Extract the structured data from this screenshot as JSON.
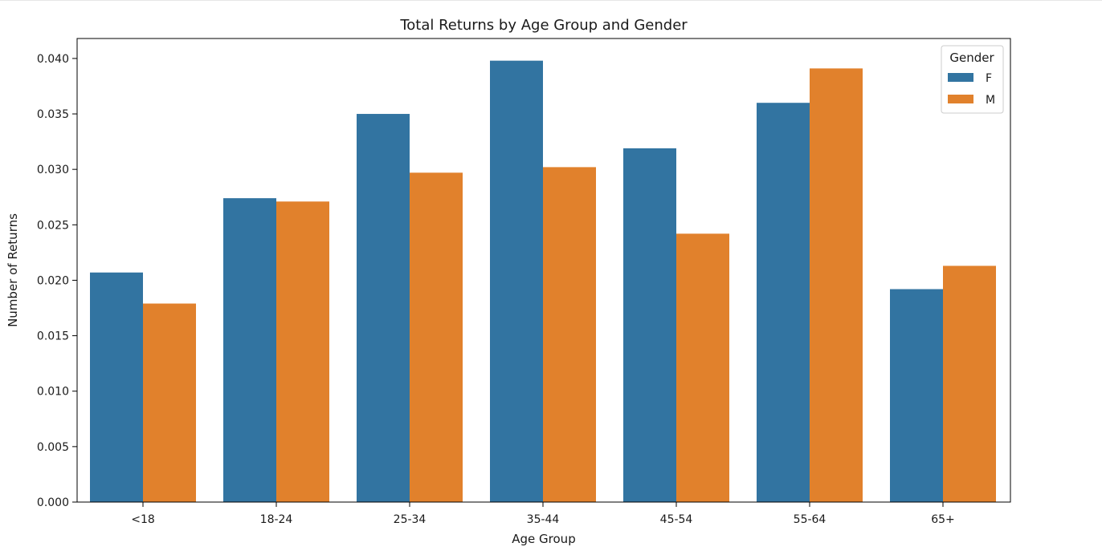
{
  "chart_data": {
    "type": "bar",
    "title": "Total Returns by Age Group and Gender",
    "xlabel": "Age Group",
    "ylabel": "Number of Returns",
    "categories": [
      "<18",
      "18-24",
      "25-34",
      "35-44",
      "45-54",
      "55-64",
      "65+"
    ],
    "series": [
      {
        "name": "F",
        "color": "#3274a1",
        "values": [
          0.0207,
          0.0274,
          0.035,
          0.0398,
          0.0319,
          0.036,
          0.0192
        ]
      },
      {
        "name": "M",
        "color": "#e1812c",
        "values": [
          0.0179,
          0.0271,
          0.0297,
          0.0302,
          0.0242,
          0.0391,
          0.0213
        ]
      }
    ],
    "ylim": [
      0,
      0.0418
    ],
    "yticks": [
      "0.000",
      "0.005",
      "0.010",
      "0.015",
      "0.020",
      "0.025",
      "0.030",
      "0.035",
      "0.040"
    ],
    "ytick_values": [
      0,
      0.005,
      0.01,
      0.015,
      0.02,
      0.025,
      0.03,
      0.035,
      0.04
    ],
    "legend": {
      "title": "Gender",
      "placement": "top-right"
    },
    "grid": false
  }
}
